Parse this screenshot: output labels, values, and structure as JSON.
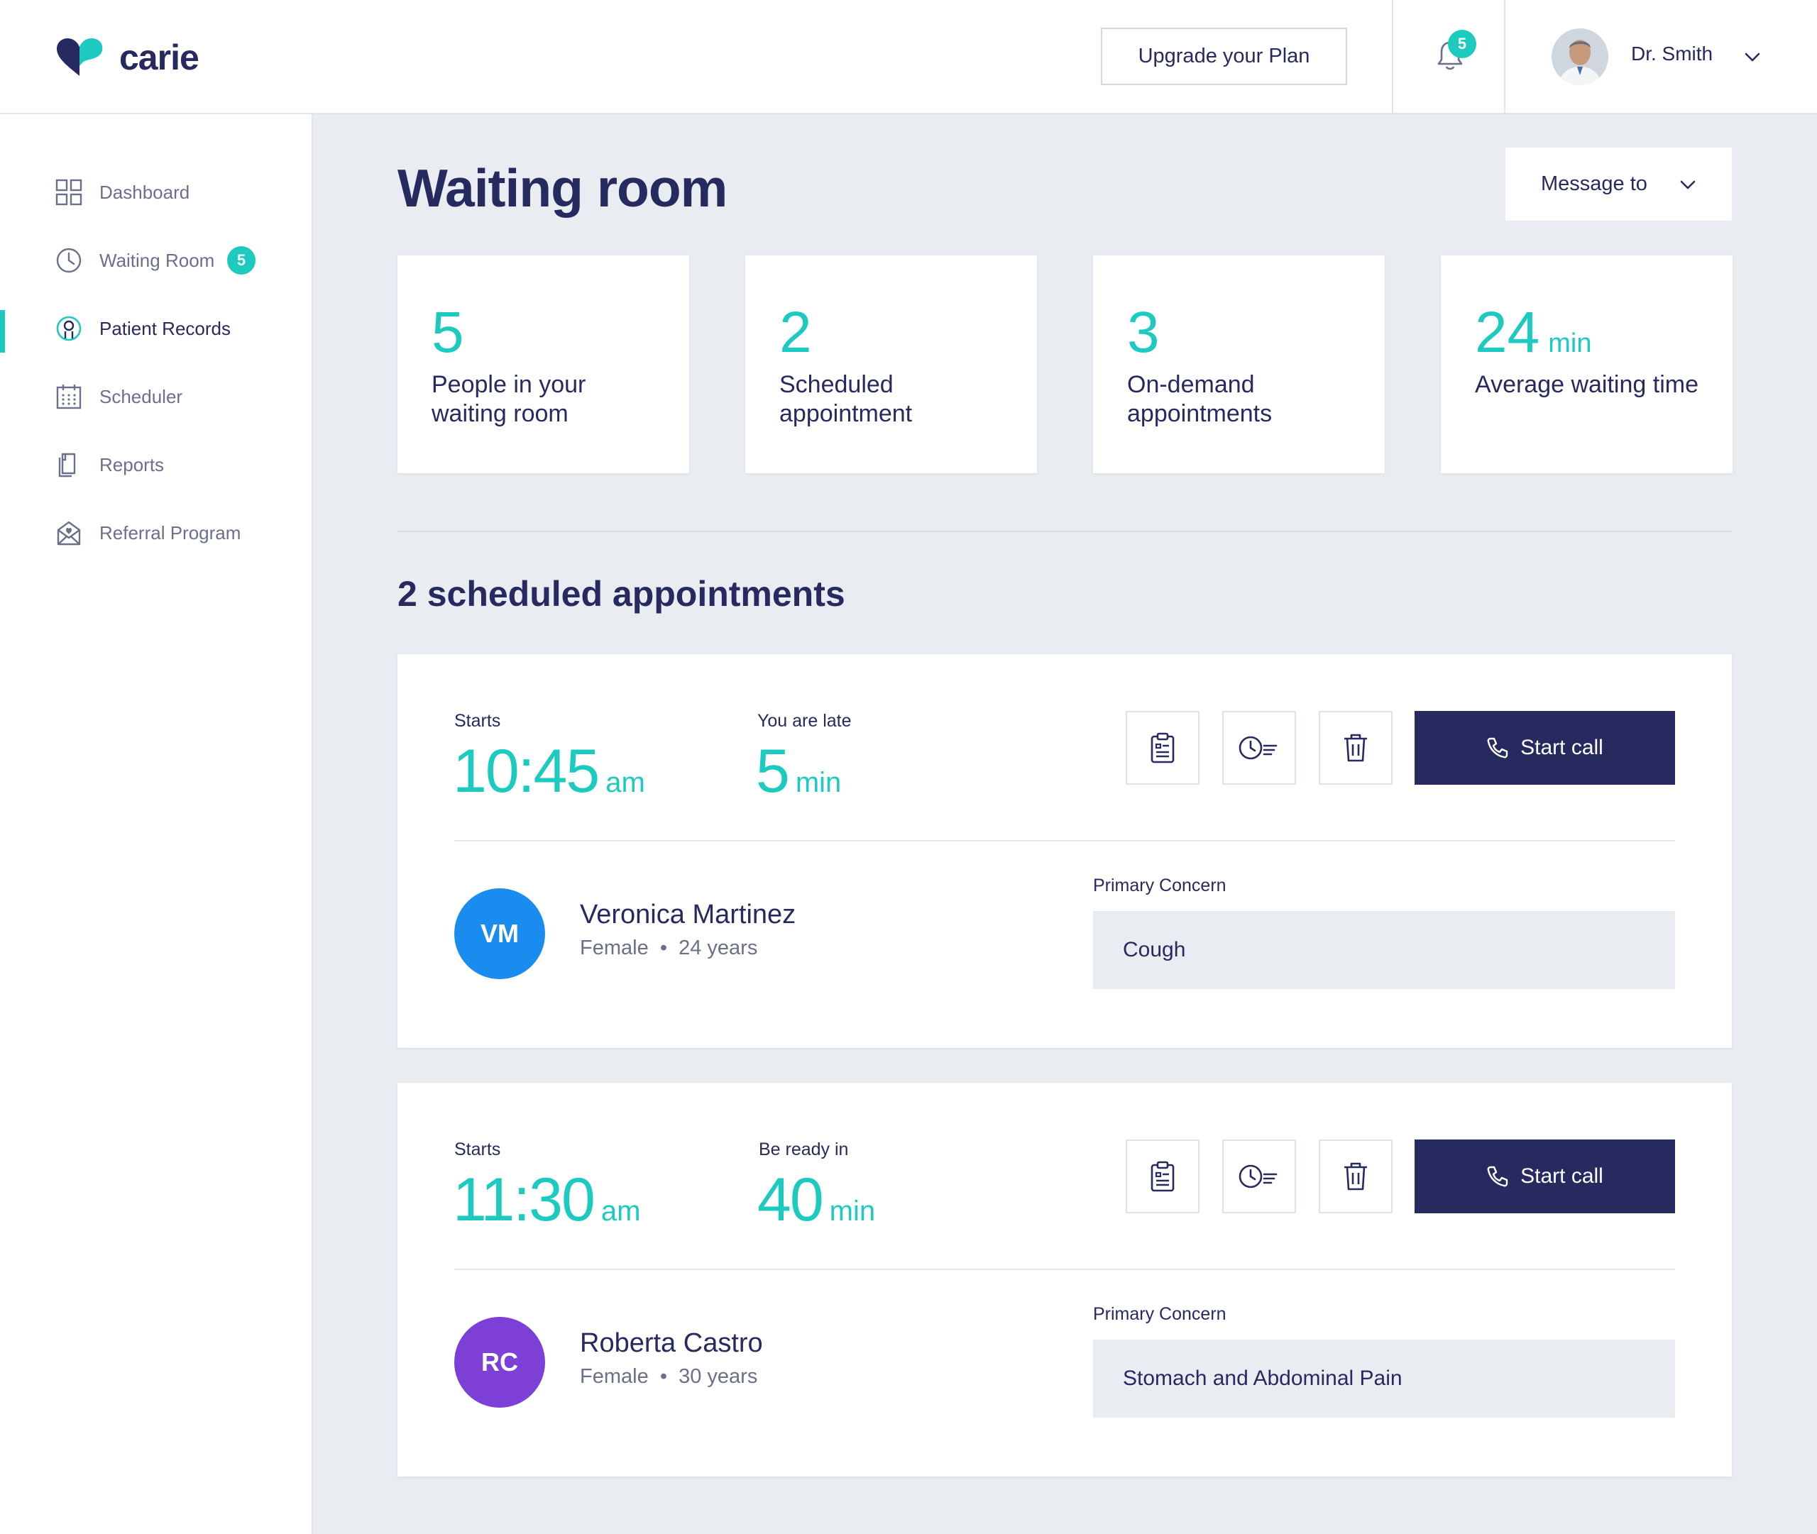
{
  "brand": {
    "name": "carie",
    "accent": "#1ccabf",
    "navy": "#262a5e"
  },
  "header": {
    "upgrade_label": "Upgrade your Plan",
    "notifications_count": "5",
    "user_name": "Dr. Smith"
  },
  "sidebar": {
    "items": [
      {
        "label": "Dashboard",
        "icon": "grid-icon"
      },
      {
        "label": "Waiting Room",
        "icon": "clock-icon",
        "badge": "5"
      },
      {
        "label": "Patient Records",
        "icon": "patient-icon",
        "active": true
      },
      {
        "label": "Scheduler",
        "icon": "calendar-icon"
      },
      {
        "label": "Reports",
        "icon": "reports-icon"
      },
      {
        "label": "Referral Program",
        "icon": "referral-icon"
      }
    ]
  },
  "main": {
    "title": "Waiting room",
    "message_to_label": "Message to",
    "stats": [
      {
        "value": "5",
        "unit": "",
        "label": "People in your waiting room"
      },
      {
        "value": "2",
        "unit": "",
        "label": "Scheduled appointment"
      },
      {
        "value": "3",
        "unit": "",
        "label": "On-demand appointments"
      },
      {
        "value": "24",
        "unit": "min",
        "label": "Average waiting time"
      }
    ],
    "section_title": "2 scheduled appointments",
    "appointments": [
      {
        "starts_label": "Starts",
        "time": "10:45",
        "time_suffix": "am",
        "status_label": "You are late",
        "status_value": "5",
        "status_unit": "min",
        "call_label": "Start call",
        "patient": {
          "initials": "VM",
          "name": "Veronica Martinez",
          "gender": "Female",
          "age": "24 years",
          "avatar_color": "#1a8cf0"
        },
        "concern_label": "Primary Concern",
        "concern": "Cough"
      },
      {
        "starts_label": "Starts",
        "time": "11:30",
        "time_suffix": "am",
        "status_label": "Be ready in",
        "status_value": "40",
        "status_unit": "min",
        "call_label": "Start call",
        "patient": {
          "initials": "RC",
          "name": "Roberta Castro",
          "gender": "Female",
          "age": "30 years",
          "avatar_color": "#7d3fd6"
        },
        "concern_label": "Primary Concern",
        "concern": "Stomach and Abdominal Pain"
      }
    ]
  }
}
